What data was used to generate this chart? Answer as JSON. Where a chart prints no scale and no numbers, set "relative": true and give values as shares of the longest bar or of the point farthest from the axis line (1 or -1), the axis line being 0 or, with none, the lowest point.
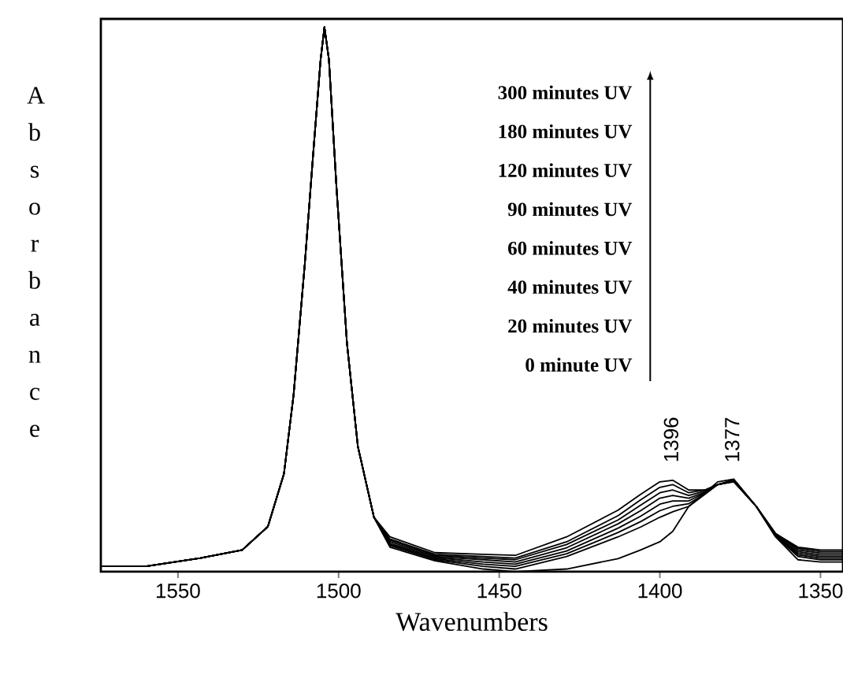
{
  "chart_data": {
    "type": "line",
    "relative": true,
    "xlabel": "Wavenumbers",
    "ylabel": "Absorbance",
    "xlim": [
      1574,
      1343
    ],
    "xticks": [
      1550,
      1500,
      1450,
      1400,
      1350
    ],
    "x": [
      1574,
      1560,
      1543,
      1530,
      1522,
      1517,
      1514,
      1510.5,
      1508,
      1505.6,
      1504.4,
      1503,
      1500.7,
      1497.4,
      1494,
      1489,
      1484,
      1470,
      1455,
      1445,
      1429,
      1413,
      1406,
      1400,
      1396,
      1391,
      1386,
      1382,
      1377,
      1370,
      1364,
      1357,
      1350,
      1343
    ],
    "series": [
      {
        "color": "#000000",
        "values": [
          0.01,
          0.01,
          0.025,
          0.04,
          0.083,
          0.18,
          0.325,
          0.566,
          0.76,
          0.94,
          1.0,
          0.94,
          0.71,
          0.42,
          0.23,
          0.1,
          0.064,
          0.035,
          0.032,
          0.03,
          0.064,
          0.113,
          0.142,
          0.165,
          0.168,
          0.15,
          0.15,
          0.16,
          0.165,
          0.12,
          0.07,
          0.045,
          0.04,
          0.04
        ]
      },
      {
        "color": "#000000",
        "values": [
          0.01,
          0.01,
          0.025,
          0.04,
          0.083,
          0.18,
          0.325,
          0.566,
          0.76,
          0.94,
          1.0,
          0.94,
          0.71,
          0.42,
          0.23,
          0.1,
          0.06,
          0.032,
          0.028,
          0.025,
          0.055,
          0.103,
          0.132,
          0.155,
          0.16,
          0.145,
          0.15,
          0.16,
          0.166,
          0.12,
          0.07,
          0.043,
          0.037,
          0.037
        ]
      },
      {
        "color": "#000000",
        "values": [
          0.01,
          0.01,
          0.025,
          0.04,
          0.083,
          0.18,
          0.325,
          0.566,
          0.76,
          0.94,
          1.0,
          0.94,
          0.71,
          0.42,
          0.23,
          0.1,
          0.058,
          0.03,
          0.025,
          0.022,
          0.05,
          0.095,
          0.122,
          0.145,
          0.15,
          0.14,
          0.148,
          0.16,
          0.166,
          0.12,
          0.07,
          0.04,
          0.034,
          0.034
        ]
      },
      {
        "color": "#000000",
        "values": [
          0.01,
          0.01,
          0.025,
          0.04,
          0.083,
          0.18,
          0.325,
          0.566,
          0.76,
          0.94,
          1.0,
          0.94,
          0.71,
          0.42,
          0.23,
          0.1,
          0.055,
          0.028,
          0.022,
          0.018,
          0.044,
          0.088,
          0.112,
          0.135,
          0.14,
          0.135,
          0.146,
          0.16,
          0.167,
          0.12,
          0.068,
          0.037,
          0.031,
          0.031
        ]
      },
      {
        "color": "#000000",
        "values": [
          0.01,
          0.01,
          0.025,
          0.04,
          0.083,
          0.18,
          0.325,
          0.566,
          0.76,
          0.94,
          1.0,
          0.94,
          0.71,
          0.42,
          0.23,
          0.1,
          0.052,
          0.026,
          0.018,
          0.014,
          0.038,
          0.08,
          0.102,
          0.124,
          0.13,
          0.13,
          0.145,
          0.16,
          0.168,
          0.12,
          0.067,
          0.034,
          0.028,
          0.028
        ]
      },
      {
        "color": "#000000",
        "values": [
          0.01,
          0.01,
          0.025,
          0.04,
          0.083,
          0.18,
          0.325,
          0.566,
          0.76,
          0.94,
          1.0,
          0.94,
          0.71,
          0.42,
          0.23,
          0.1,
          0.05,
          0.024,
          0.014,
          0.01,
          0.033,
          0.072,
          0.092,
          0.112,
          0.12,
          0.125,
          0.143,
          0.16,
          0.168,
          0.12,
          0.066,
          0.031,
          0.025,
          0.025
        ]
      },
      {
        "color": "#000000",
        "values": [
          0.01,
          0.01,
          0.025,
          0.04,
          0.083,
          0.18,
          0.325,
          0.566,
          0.76,
          0.94,
          1.0,
          0.94,
          0.71,
          0.42,
          0.23,
          0.1,
          0.048,
          0.022,
          0.01,
          0.005,
          0.028,
          0.064,
          0.082,
          0.1,
          0.11,
          0.12,
          0.142,
          0.16,
          0.169,
          0.12,
          0.065,
          0.028,
          0.022,
          0.022
        ]
      },
      {
        "color": "#000000",
        "values": [
          0.01,
          0.01,
          0.025,
          0.04,
          0.083,
          0.18,
          0.325,
          0.566,
          0.76,
          0.94,
          1.0,
          0.94,
          0.71,
          0.42,
          0.23,
          0.1,
          0.045,
          0.02,
          0.005,
          0.0,
          0.005,
          0.024,
          0.04,
          0.055,
          0.074,
          0.12,
          0.145,
          0.165,
          0.17,
          0.12,
          0.064,
          0.022,
          0.018,
          0.018
        ]
      }
    ],
    "annotations": [
      "300 minutes UV",
      "180 minutes UV",
      "120 minutes UV",
      "90 minutes UV",
      "60 minutes UV",
      "40 minutes UV",
      "20 minutes UV",
      "0 minute   UV",
      "1396",
      "1377"
    ]
  }
}
